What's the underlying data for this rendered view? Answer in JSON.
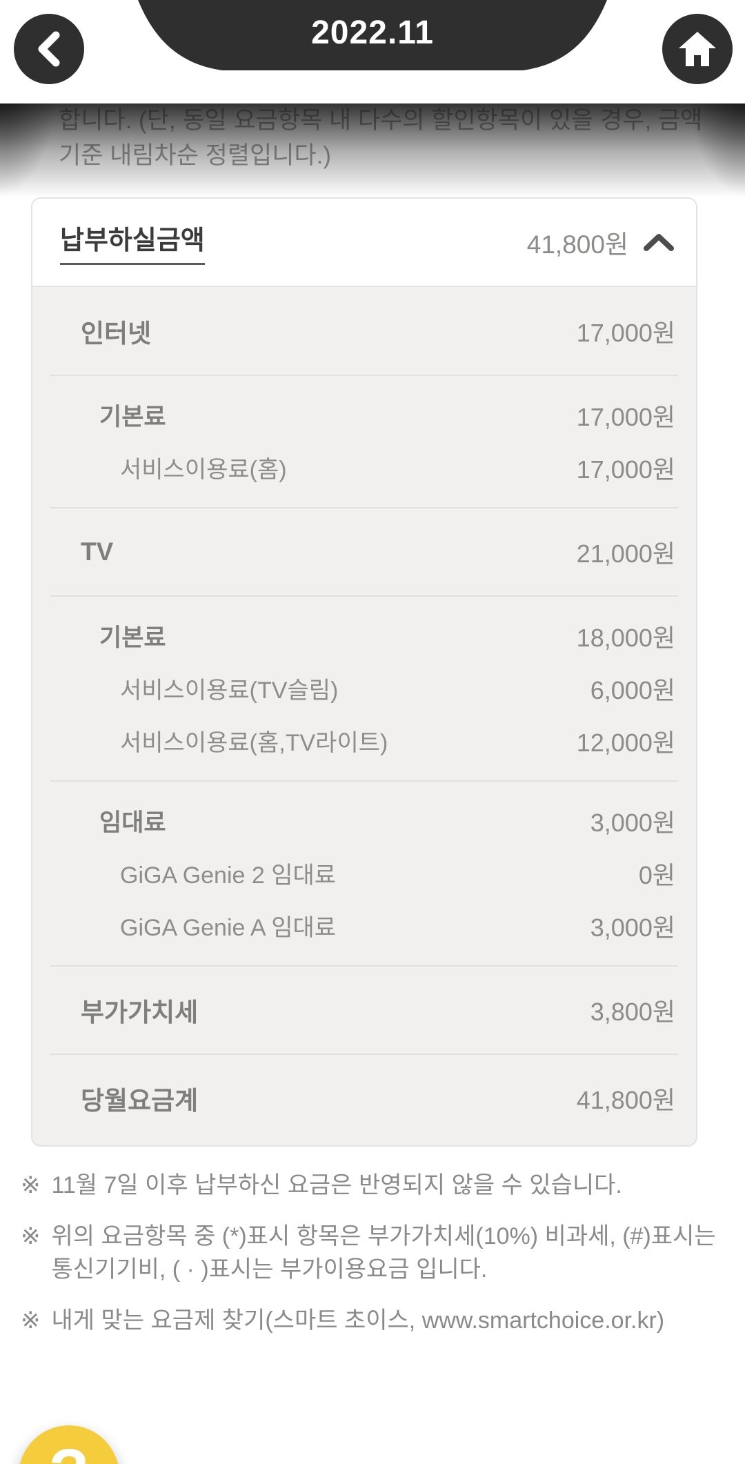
{
  "header": {
    "title": "2022.11",
    "back_icon": "chevron-left",
    "home_icon": "home"
  },
  "intro": {
    "text": "합니다. (단, 동일 요금항목 내 다수의 할인항목이 있을 경우, 금액기준 내림차순 정렬입니다.)"
  },
  "bill": {
    "summary": {
      "label": "납부하실금액",
      "amount": "41,800원"
    },
    "collapse_icon": "chevron-up",
    "sections": [
      {
        "rows": [
          {
            "level": 1,
            "label": "인터넷",
            "amount": "17,000원"
          }
        ]
      },
      {
        "rows": [
          {
            "level": 2,
            "label": "기본료",
            "amount": "17,000원"
          },
          {
            "level": 3,
            "label": "서비스이용료(홈)",
            "amount": "17,000원"
          }
        ]
      },
      {
        "rows": [
          {
            "level": 1,
            "label": "TV",
            "amount": "21,000원"
          }
        ]
      },
      {
        "rows": [
          {
            "level": 2,
            "label": "기본료",
            "amount": "18,000원"
          },
          {
            "level": 3,
            "label": "서비스이용료(TV슬림)",
            "amount": "6,000원"
          },
          {
            "level": 3,
            "label": "서비스이용료(홈,TV라이트)",
            "amount": "12,000원"
          }
        ]
      },
      {
        "rows": [
          {
            "level": 2,
            "label": "임대료",
            "amount": "3,000원"
          },
          {
            "level": 3,
            "label": "GiGA Genie 2 임대료",
            "amount": "0원"
          },
          {
            "level": 3,
            "label": "GiGA Genie A 임대료",
            "amount": "3,000원"
          }
        ]
      },
      {
        "rows": [
          {
            "level": 1,
            "label": "부가가치세",
            "amount": "3,800원"
          }
        ]
      },
      {
        "rows": [
          {
            "level": 1,
            "label": "당월요금계",
            "amount": "41,800원"
          }
        ]
      }
    ]
  },
  "footnotes": [
    {
      "marker": "※",
      "text": "11월 7일 이후 납부하신 요금은 반영되지 않을 수 있습니다."
    },
    {
      "marker": "※",
      "text": "위의 요금항목 중 (*)표시 항목은 부가가치세(10%) 비과세, (#)표시는 통신기기비, ( · )표시는 부가이용요금 입니다."
    },
    {
      "marker": "※",
      "text": "내게 맞는 요금제 찾기(스마트 초이스, www.smartchoice.or.kr)"
    }
  ],
  "help": {
    "label": "?"
  },
  "colors": {
    "header_dark": "#302f2f",
    "accent_yellow": "#f5cd3c",
    "amount_gray": "#8b8b89",
    "body_bg": "#f1f0ee"
  }
}
